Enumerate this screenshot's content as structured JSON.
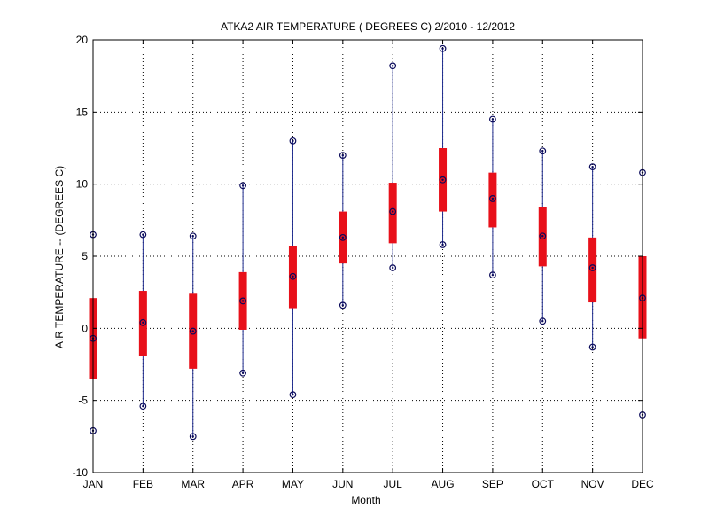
{
  "chart_data": {
    "type": "boxplot",
    "title": "ATKA2  AIR TEMPERATURE ( DEGREES C) 2/2010 - 12/2012",
    "xlabel": "Month",
    "ylabel": "AIR TEMPERATURE -- (DEGREES C)",
    "ylim": [
      -10,
      20
    ],
    "yticks": [
      "-10",
      "-5",
      "0",
      "5",
      "10",
      "15",
      "20"
    ],
    "grid": true,
    "categories": [
      "JAN",
      "FEB",
      "MAR",
      "APR",
      "MAY",
      "JUN",
      "JUL",
      "AUG",
      "SEP",
      "OCT",
      "NOV",
      "DEC"
    ],
    "series": [
      {
        "min": [
          -7.1,
          -5.4,
          -7.5,
          -3.1,
          -4.6,
          1.6,
          4.2,
          5.8,
          3.7,
          0.5,
          -1.3,
          -6.0
        ],
        "q1": [
          -3.5,
          -1.9,
          -2.8,
          -0.1,
          1.4,
          4.5,
          5.9,
          8.1,
          7.0,
          4.3,
          1.8,
          -0.7
        ],
        "median": [
          -0.7,
          0.4,
          -0.2,
          1.9,
          3.6,
          6.3,
          8.1,
          10.3,
          9.0,
          6.4,
          4.2,
          2.1
        ],
        "q3": [
          2.1,
          2.6,
          2.4,
          3.9,
          5.7,
          8.1,
          10.1,
          12.5,
          10.8,
          8.4,
          6.3,
          5.0
        ],
        "max": [
          6.5,
          6.5,
          6.4,
          9.9,
          13.0,
          12.0,
          18.2,
          19.4,
          14.5,
          12.3,
          11.2,
          10.8
        ]
      }
    ],
    "colors": {
      "whisker": "#1f2c8f",
      "box": "#e8101a",
      "marker": "#0a0a5a",
      "grid": "#000000"
    }
  }
}
